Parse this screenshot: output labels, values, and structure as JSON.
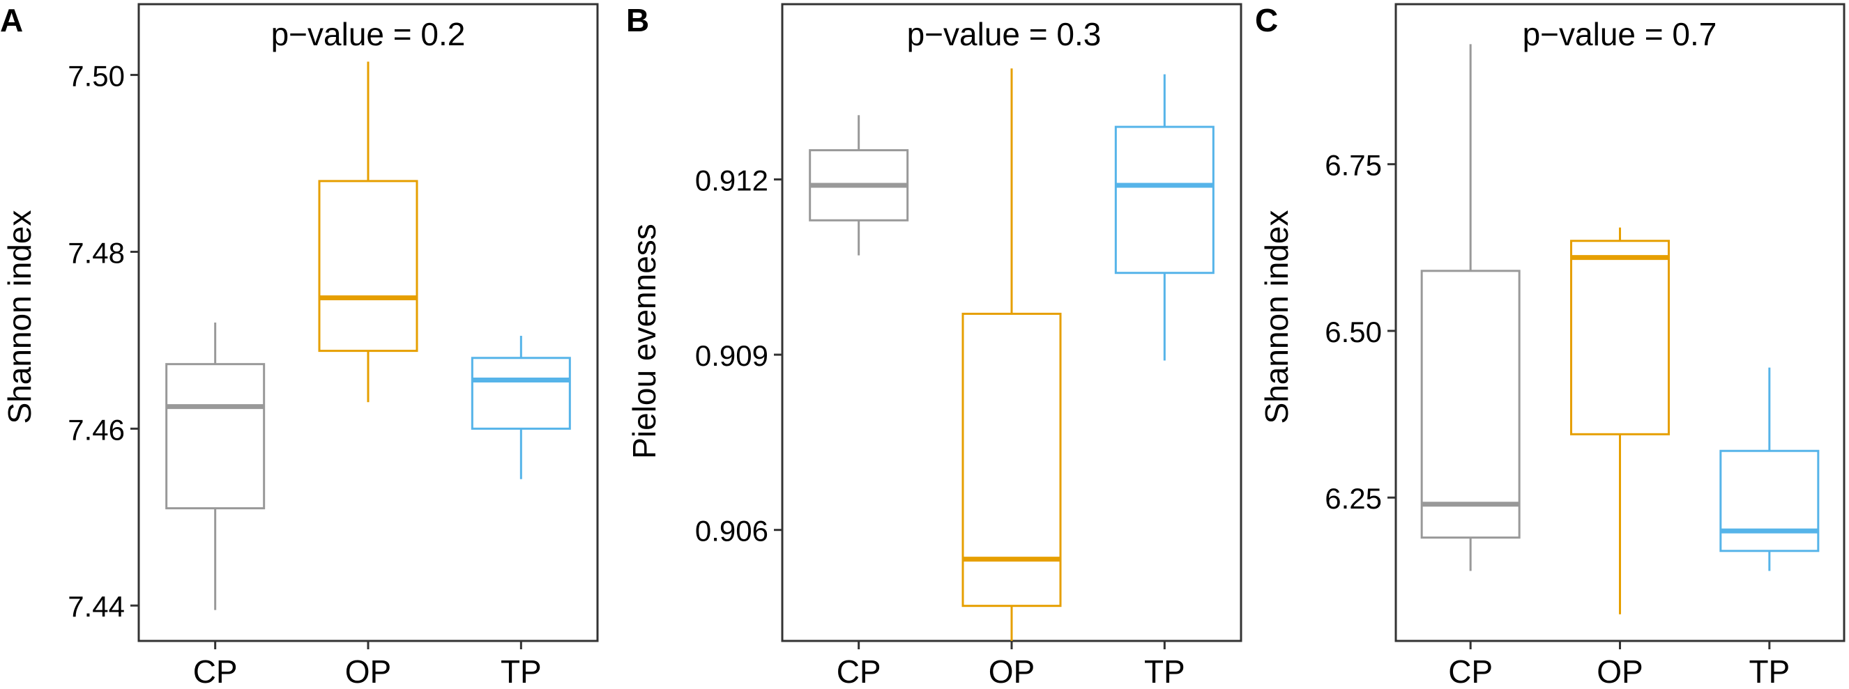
{
  "chart_data": [
    {
      "type": "boxplot",
      "panel_label": "A",
      "title": "p−value = 0.2",
      "xlabel": "",
      "ylabel": "Shannon index",
      "ylim": [
        7.436,
        7.508
      ],
      "yticks": [
        7.44,
        7.46,
        7.48,
        7.5
      ],
      "ytick_labels": [
        "7.44",
        "7.46",
        "7.48",
        "7.50"
      ],
      "categories": [
        "CP",
        "OP",
        "TP"
      ],
      "boxes": [
        {
          "group": "CP",
          "min": 7.4395,
          "q1": 7.451,
          "median": 7.4625,
          "q3": 7.4673,
          "max": 7.472,
          "color": "#999999"
        },
        {
          "group": "OP",
          "min": 7.463,
          "q1": 7.4688,
          "median": 7.4748,
          "q3": 7.488,
          "max": 7.5015,
          "color": "#E69F00"
        },
        {
          "group": "TP",
          "min": 7.4543,
          "q1": 7.46,
          "median": 7.4655,
          "q3": 7.468,
          "max": 7.4705,
          "color": "#56B4E9"
        }
      ]
    },
    {
      "type": "boxplot",
      "panel_label": "B",
      "title": "p−value = 0.3",
      "xlabel": "",
      "ylabel": "Pielou evenness",
      "ylim": [
        0.9041,
        0.915
      ],
      "yticks": [
        0.906,
        0.909,
        0.912
      ],
      "ytick_labels": [
        "0.906",
        "0.909",
        "0.912"
      ],
      "categories": [
        "CP",
        "OP",
        "TP"
      ],
      "boxes": [
        {
          "group": "CP",
          "min": 0.9107,
          "q1": 0.9113,
          "median": 0.9119,
          "q3": 0.9125,
          "max": 0.9131,
          "color": "#999999"
        },
        {
          "group": "OP",
          "min": 0.904,
          "q1": 0.9047,
          "median": 0.9055,
          "q3": 0.9097,
          "max": 0.9139,
          "color": "#E69F00"
        },
        {
          "group": "TP",
          "min": 0.9089,
          "q1": 0.9104,
          "median": 0.9119,
          "q3": 0.9129,
          "max": 0.9138,
          "color": "#56B4E9"
        }
      ]
    },
    {
      "type": "boxplot",
      "panel_label": "C",
      "title": "p−value = 0.7",
      "xlabel": "",
      "ylabel": "Shannon index",
      "ylim": [
        6.035,
        6.99
      ],
      "yticks": [
        6.25,
        6.5,
        6.75
      ],
      "ytick_labels": [
        "6.25",
        "6.50",
        "6.75"
      ],
      "categories": [
        "CP",
        "OP",
        "TP"
      ],
      "boxes": [
        {
          "group": "CP",
          "min": 6.14,
          "q1": 6.19,
          "median": 6.24,
          "q3": 6.59,
          "max": 6.93,
          "color": "#999999"
        },
        {
          "group": "OP",
          "min": 6.075,
          "q1": 6.345,
          "median": 6.61,
          "q3": 6.635,
          "max": 6.655,
          "color": "#E69F00"
        },
        {
          "group": "TP",
          "min": 6.14,
          "q1": 6.17,
          "median": 6.2,
          "q3": 6.32,
          "max": 6.445,
          "color": "#56B4E9"
        }
      ]
    }
  ]
}
